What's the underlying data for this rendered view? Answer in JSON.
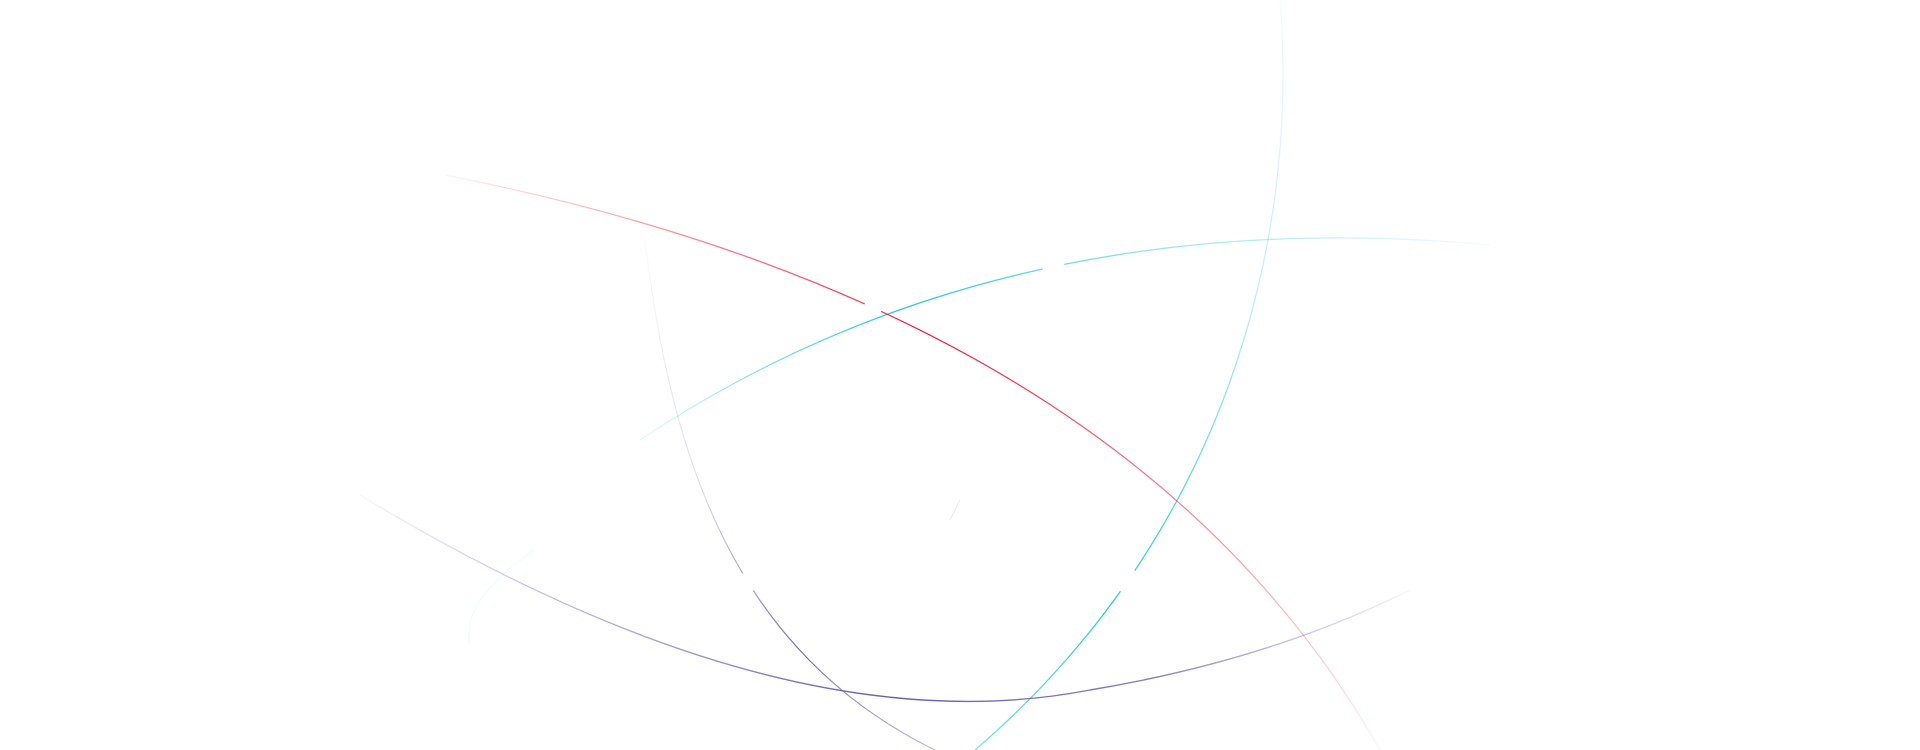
{
  "background_color": "#ffffff",
  "colors": {
    "cyan": "#2ec8d4",
    "red": "#f0203c",
    "purple": "#6b5fb0"
  }
}
